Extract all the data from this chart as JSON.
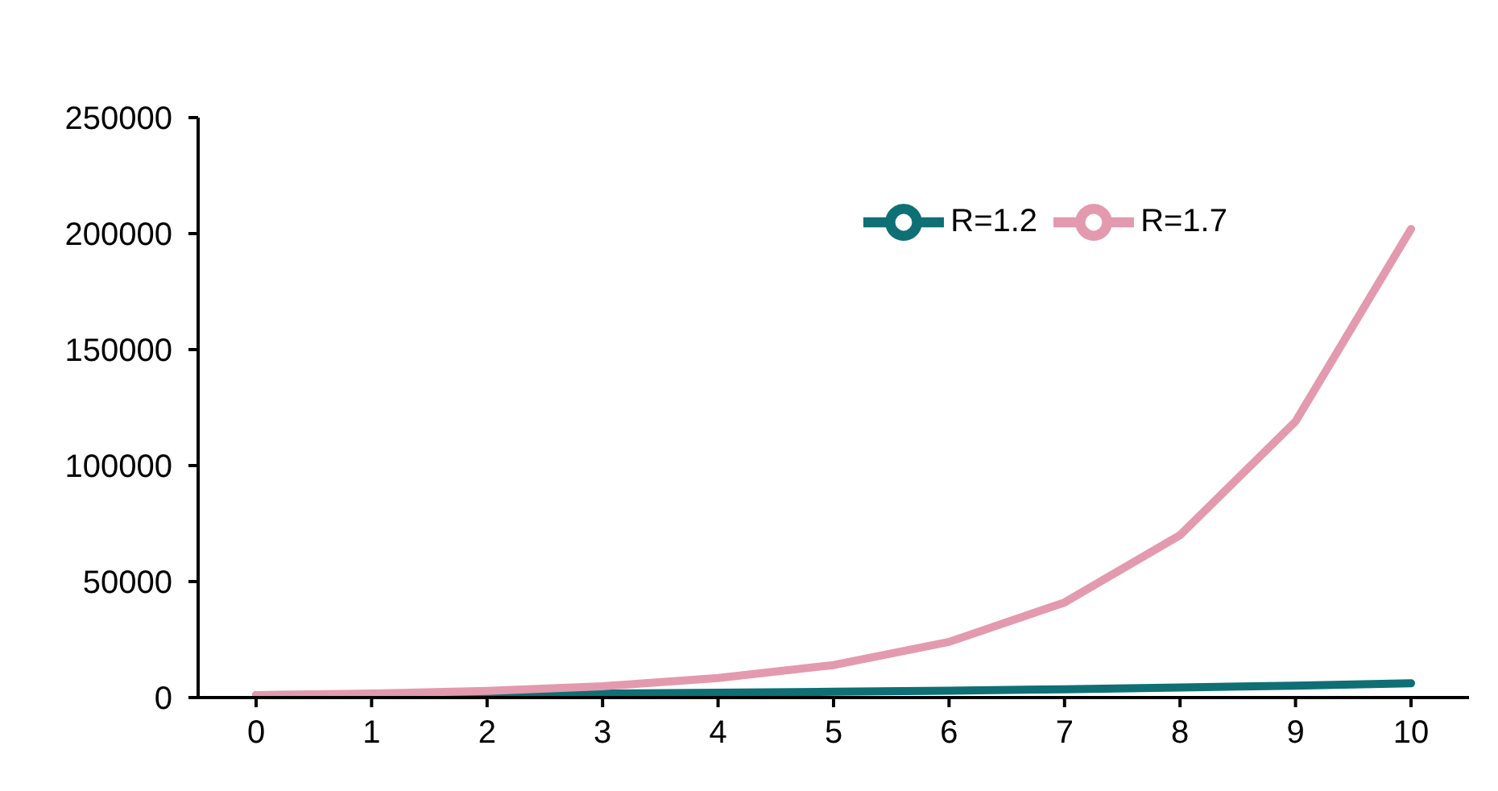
{
  "chart_data": {
    "type": "line",
    "categories": [
      "0",
      "1",
      "2",
      "3",
      "4",
      "5",
      "6",
      "7",
      "8",
      "9",
      "10"
    ],
    "series": [
      {
        "name": "R=1.2",
        "color": "#0e7075",
        "values": [
          1000,
          1200,
          1440,
          1730,
          2070,
          2490,
          2990,
          3580,
          4300,
          5160,
          6190
        ]
      },
      {
        "name": "R=1.7",
        "color": "#e39aae",
        "values": [
          1000,
          1700,
          2900,
          4900,
          8400,
          14000,
          24000,
          41000,
          70000,
          119000,
          202000
        ]
      }
    ],
    "ylim": [
      0,
      250000
    ],
    "yticks": [
      0,
      50000,
      100000,
      150000,
      200000,
      250000
    ],
    "grid": false,
    "legend": "top right",
    "marker": "none",
    "line_style": "solid"
  }
}
